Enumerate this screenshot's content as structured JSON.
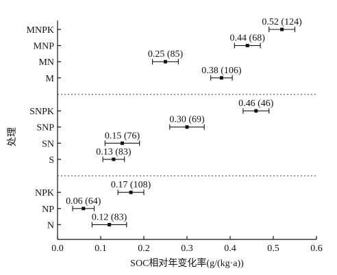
{
  "chart_data": {
    "type": "scatter",
    "subtype": "forest-plot",
    "xlabel": "SOC相对年变化率(g/(kg·a))",
    "ylabel": "处理",
    "xlim": [
      0.0,
      0.6
    ],
    "xticks": [
      "0.0",
      "0.1",
      "0.2",
      "0.3",
      "0.4",
      "0.5",
      "0.6"
    ],
    "grid": false,
    "groups": [
      {
        "items": [
          {
            "label": "MNPK",
            "value": 0.52,
            "err": 0.03,
            "annotation": "0.52 (124)"
          },
          {
            "label": "MNP",
            "value": 0.44,
            "err": 0.03,
            "annotation": "0.44 (68)"
          },
          {
            "label": "MN",
            "value": 0.25,
            "err": 0.03,
            "annotation": "0.25 (85)"
          },
          {
            "label": "M",
            "value": 0.38,
            "err": 0.025,
            "annotation": "0.38 (106)"
          }
        ]
      },
      {
        "items": [
          {
            "label": "SNPK",
            "value": 0.46,
            "err": 0.03,
            "annotation": "0.46 (46)"
          },
          {
            "label": "SNP",
            "value": 0.3,
            "err": 0.04,
            "annotation": "0.30 (69)"
          },
          {
            "label": "SN",
            "value": 0.15,
            "err": 0.04,
            "annotation": "0.15 (76)"
          },
          {
            "label": "S",
            "value": 0.13,
            "err": 0.025,
            "annotation": "0.13 (83)"
          }
        ]
      },
      {
        "items": [
          {
            "label": "NPK",
            "value": 0.17,
            "err": 0.03,
            "annotation": "0.17 (108)"
          },
          {
            "label": "NP",
            "value": 0.06,
            "err": 0.025,
            "annotation": "0.06 (64)"
          },
          {
            "label": "N",
            "value": 0.12,
            "err": 0.04,
            "annotation": "0.12 (83)"
          }
        ]
      }
    ]
  }
}
